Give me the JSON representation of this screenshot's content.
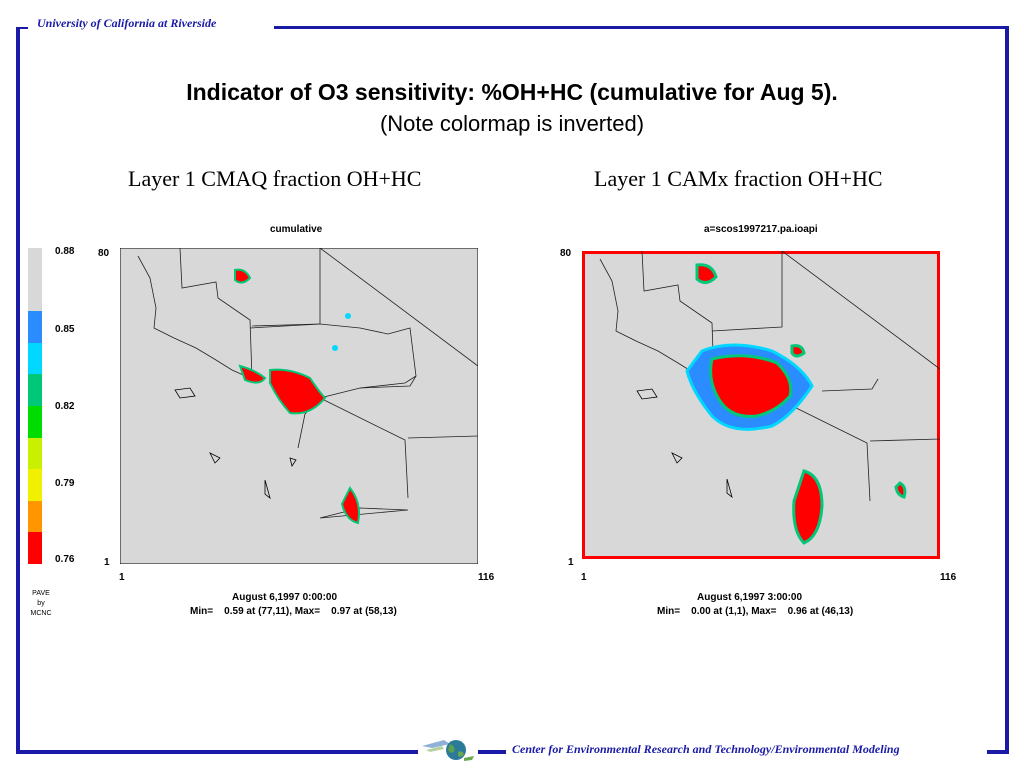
{
  "header": {
    "institution": "University of California at Riverside"
  },
  "footer": {
    "center": "Center for Environmental Research and Technology/Environmental Modeling"
  },
  "slide": {
    "title": "Indicator of O3 sensitivity:  %OH+HC  (cumulative for Aug 5).",
    "subtitle": "(Note colormap is inverted)"
  },
  "left_panel": {
    "title": "Layer 1  CMAQ  fraction OH+HC",
    "subtitle": "cumulative",
    "y_top": "80",
    "y_bottom": "1",
    "x_left": "1",
    "x_right": "116",
    "date": "August 6,1997 0:00:00",
    "minmax": "Min=    0.59 at (77,11), Max=    0.97 at (58,13)"
  },
  "right_panel": {
    "title": "Layer 1  CAMx  fraction OH+HC",
    "subtitle": "a=scos1997217.pa.ioapi",
    "y_top": "80",
    "y_bottom": "1",
    "x_left": "1",
    "x_right": "116",
    "date": "August 6,1997 3:00:00",
    "minmax": "Min=    0.00 at (1,1), Max=    0.96 at (46,13)"
  },
  "colorbar": {
    "ticks": [
      "0.88",
      "0.85",
      "0.82",
      "0.79",
      "0.76"
    ],
    "credit_line1": "PAVE",
    "credit_line2": "by",
    "credit_line3": "MCNC",
    "colors": [
      "#d8d8d8",
      "#d8d8d8",
      "#2a8cff",
      "#00d8ff",
      "#00c878",
      "#00dc00",
      "#c8f000",
      "#f0f000",
      "#ff9600",
      "#ff0000"
    ]
  }
}
